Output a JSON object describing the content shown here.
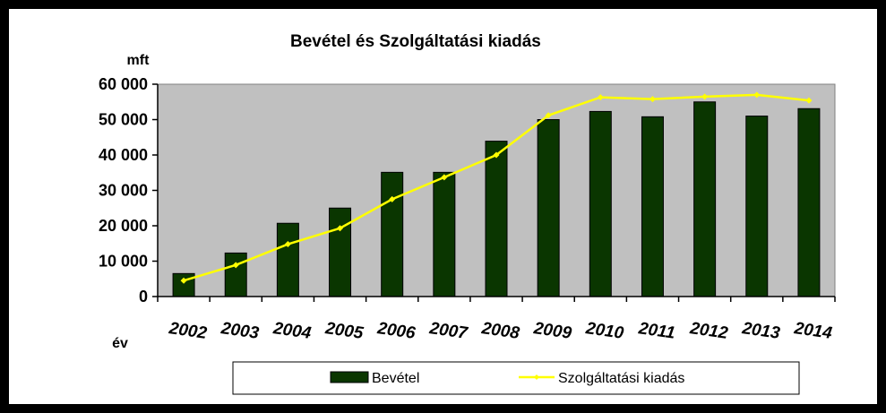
{
  "chart_data": {
    "type": "bar",
    "title": "Bevétel és Szolgáltatási kiadás",
    "ylabel": "mft",
    "xlabel": "év",
    "categories": [
      "2002",
      "2003",
      "2004",
      "2005",
      "2006",
      "2007",
      "2008",
      "2009",
      "2010",
      "2011",
      "2012",
      "2013",
      "2014"
    ],
    "ylim": [
      0,
      60000
    ],
    "yticks": [
      0,
      10000,
      20000,
      30000,
      40000,
      50000,
      60000
    ],
    "ytick_labels": [
      "0",
      "10 000",
      "20 000",
      "30 000",
      "40 000",
      "50 000",
      "60 000"
    ],
    "grid": false,
    "legend_position": "bottom",
    "series": [
      {
        "name": "Bevétel",
        "type": "bar",
        "color": "#0a3600",
        "values": [
          6500,
          12300,
          20700,
          25000,
          35100,
          35100,
          43900,
          50000,
          52300,
          50800,
          55000,
          51000,
          53100
        ]
      },
      {
        "name": "Szolgáltatási kiadás",
        "type": "line",
        "color": "#ffff00",
        "values": [
          4500,
          8900,
          14800,
          19300,
          27500,
          33700,
          40000,
          51200,
          56300,
          55800,
          56500,
          57000,
          55400
        ]
      }
    ],
    "plot_background": "#c0c0c0"
  }
}
